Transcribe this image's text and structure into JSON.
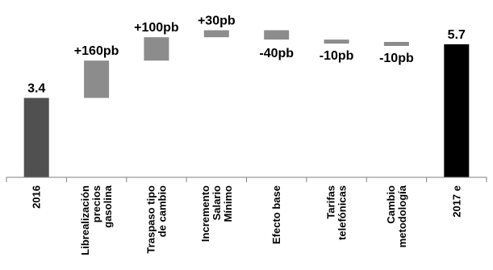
{
  "chart_data": {
    "type": "bar",
    "subtype": "waterfall",
    "title": "",
    "xlabel": "",
    "ylabel": "",
    "ylim": [
      0,
      7.25
    ],
    "grid": false,
    "legend": "none",
    "categories": [
      [
        "2016"
      ],
      [
        "Librealización",
        "precios",
        "gasolina"
      ],
      [
        "Traspaso tipo",
        "de cambio"
      ],
      [
        "Incremento",
        "Salario",
        "Mínimo"
      ],
      [
        "Efecto base"
      ],
      [
        "Tarifas",
        "telefónicas"
      ],
      [
        "Cambio",
        "metodología"
      ],
      [
        "2017 e"
      ]
    ],
    "bars": [
      {
        "kind": "total",
        "start": 0,
        "end": 3.4,
        "label": "3.4",
        "color": "#505050"
      },
      {
        "kind": "delta",
        "start": 3.4,
        "end": 5.0,
        "label": "+160pb",
        "color": "#8c8c8c"
      },
      {
        "kind": "delta",
        "start": 5.0,
        "end": 6.0,
        "label": "+100pb",
        "color": "#8c8c8c"
      },
      {
        "kind": "delta",
        "start": 6.0,
        "end": 6.3,
        "label": "+30pb",
        "color": "#8c8c8c"
      },
      {
        "kind": "delta",
        "start": 6.3,
        "end": 5.9,
        "label": "-40pb",
        "color": "#8c8c8c"
      },
      {
        "kind": "delta",
        "start": 5.9,
        "end": 5.8,
        "label": "-10pb",
        "color": "#8c8c8c"
      },
      {
        "kind": "delta",
        "start": 5.8,
        "end": 5.7,
        "label": "-10pb",
        "color": "#8c8c8c"
      },
      {
        "kind": "total",
        "start": 0,
        "end": 5.7,
        "label": "5.7",
        "color": "#000000"
      }
    ]
  }
}
